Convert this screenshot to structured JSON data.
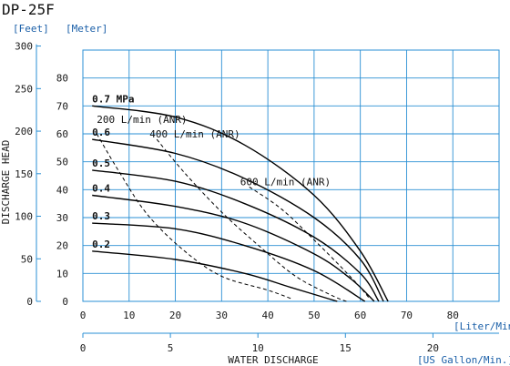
{
  "chart_data": {
    "type": "line",
    "title": "DP-25F",
    "xlabel": "WATER DISCHARGE",
    "ylabel": "DISCHARGE HEAD",
    "x_unit_primary": "[Liter/Min.]",
    "x_unit_secondary": "[US Gallon/Min.]",
    "y_unit_feet": "[Feet]",
    "y_unit_meter": "[Meter]",
    "xlim": [
      0,
      90
    ],
    "ylim": [
      0,
      90
    ],
    "x_ticks_liter": [
      "0",
      "10",
      "20",
      "30",
      "40",
      "50",
      "60",
      "70",
      "80"
    ],
    "x_ticks_gallon": [
      "0",
      "5",
      "10",
      "15",
      "20"
    ],
    "y_ticks_meter": [
      "0",
      "10",
      "20",
      "30",
      "40",
      "50",
      "60",
      "70",
      "80"
    ],
    "y_ticks_feet": [
      "0",
      "50",
      "100",
      "150",
      "200",
      "250",
      "300"
    ],
    "grid": true,
    "pressure_curves": [
      {
        "name": "0.7 MPa",
        "points": [
          [
            2,
            70
          ],
          [
            20,
            66
          ],
          [
            35,
            56
          ],
          [
            50,
            38
          ],
          [
            60,
            18
          ],
          [
            66,
            0
          ]
        ]
      },
      {
        "name": "0.6",
        "points": [
          [
            2,
            58
          ],
          [
            20,
            53
          ],
          [
            35,
            44
          ],
          [
            50,
            30
          ],
          [
            60,
            15
          ],
          [
            65,
            0
          ]
        ]
      },
      {
        "name": "0.5",
        "points": [
          [
            2,
            47
          ],
          [
            20,
            43
          ],
          [
            35,
            35
          ],
          [
            50,
            23
          ],
          [
            60,
            10
          ],
          [
            64,
            0
          ]
        ]
      },
      {
        "name": "0.4",
        "points": [
          [
            2,
            38
          ],
          [
            20,
            34
          ],
          [
            35,
            28
          ],
          [
            50,
            17
          ],
          [
            58,
            8
          ],
          [
            63,
            0
          ]
        ]
      },
      {
        "name": "0.3",
        "points": [
          [
            2,
            28
          ],
          [
            20,
            26
          ],
          [
            35,
            20
          ],
          [
            50,
            11
          ],
          [
            61,
            0
          ]
        ]
      },
      {
        "name": "0.2",
        "points": [
          [
            2,
            18
          ],
          [
            20,
            15
          ],
          [
            35,
            10
          ],
          [
            45,
            5
          ],
          [
            55,
            0
          ]
        ]
      }
    ],
    "air_consumption_curves": [
      {
        "name": "200 L/min (ANR)",
        "points": [
          [
            3,
            60
          ],
          [
            8,
            46
          ],
          [
            14,
            31
          ],
          [
            22,
            18
          ],
          [
            30,
            9
          ],
          [
            40,
            4
          ],
          [
            45,
            1
          ]
        ]
      },
      {
        "name": "400 L/min (ANR)",
        "points": [
          [
            16,
            58
          ],
          [
            22,
            46
          ],
          [
            30,
            32
          ],
          [
            38,
            20
          ],
          [
            46,
            9
          ],
          [
            54,
            2
          ],
          [
            57,
            0
          ]
        ]
      },
      {
        "name": "600 L/min (ANR)",
        "points": [
          [
            36,
            41
          ],
          [
            43,
            33
          ],
          [
            50,
            22
          ],
          [
            56,
            12
          ],
          [
            60,
            5
          ],
          [
            62,
            1
          ]
        ]
      }
    ],
    "pressure_labels": [
      "0.7 MPa",
      "0.6",
      "0.5",
      "0.4",
      "0.3",
      "0.2"
    ],
    "air_labels": [
      "200 L/min (ANR)",
      "400 L/min (ANR)",
      "600 L/min (ANR)"
    ]
  }
}
